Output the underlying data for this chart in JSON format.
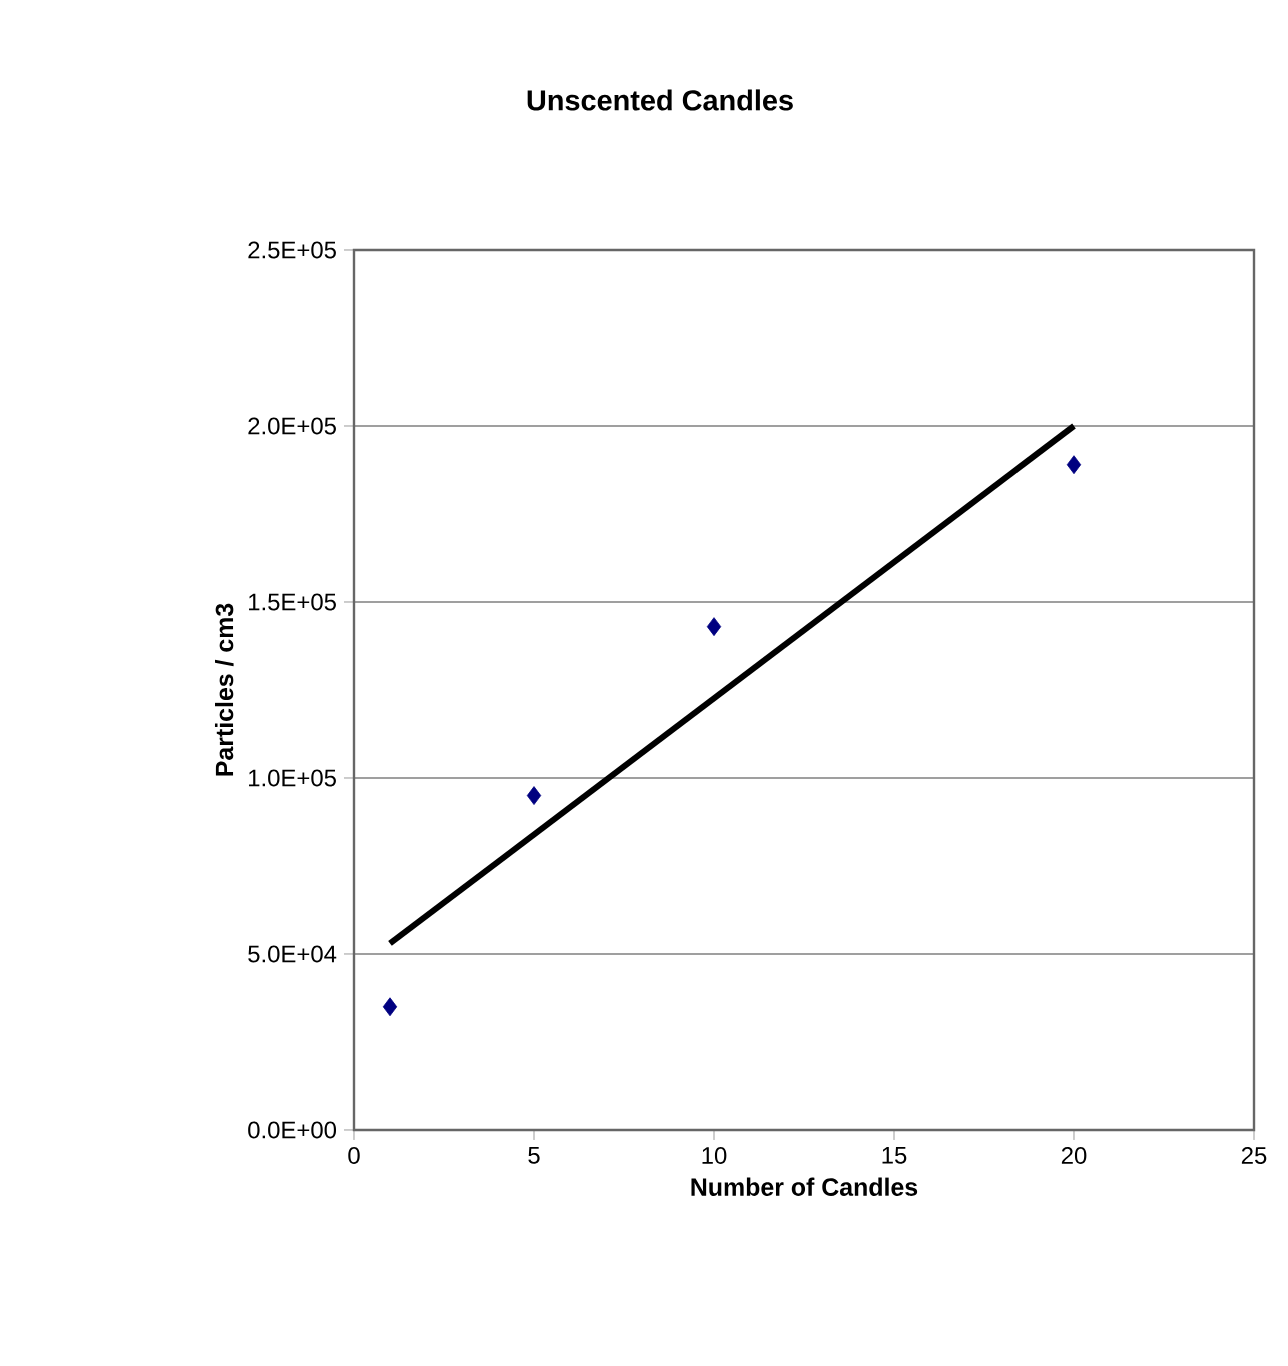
{
  "chart_data": {
    "type": "scatter",
    "title": "Unscented Candles",
    "xlabel": "Number of Candles",
    "ylabel": "Particles / cm3",
    "marker": "diamond",
    "grid": "y",
    "xlim": [
      0,
      25
    ],
    "xticks": [
      0,
      5,
      10,
      15,
      20,
      25
    ],
    "ylim": [
      0,
      250000
    ],
    "yticks": [
      {
        "value": 0,
        "label": "0.0E+00"
      },
      {
        "value": 50000,
        "label": "5.0E+04"
      },
      {
        "value": 100000,
        "label": "1.0E+05"
      },
      {
        "value": 150000,
        "label": "1.5E+05"
      },
      {
        "value": 200000,
        "label": "2.0E+05"
      },
      {
        "value": 250000,
        "label": "2.5E+05"
      }
    ],
    "series": [
      {
        "color": "#000080",
        "x": [
          1,
          5,
          10,
          20
        ],
        "values": [
          35000,
          95000,
          143000,
          189000
        ]
      },
      {
        "type": "line",
        "color": "#000000",
        "marker": "none",
        "x": [
          1,
          20
        ],
        "values": [
          53000,
          200000
        ]
      }
    ]
  }
}
